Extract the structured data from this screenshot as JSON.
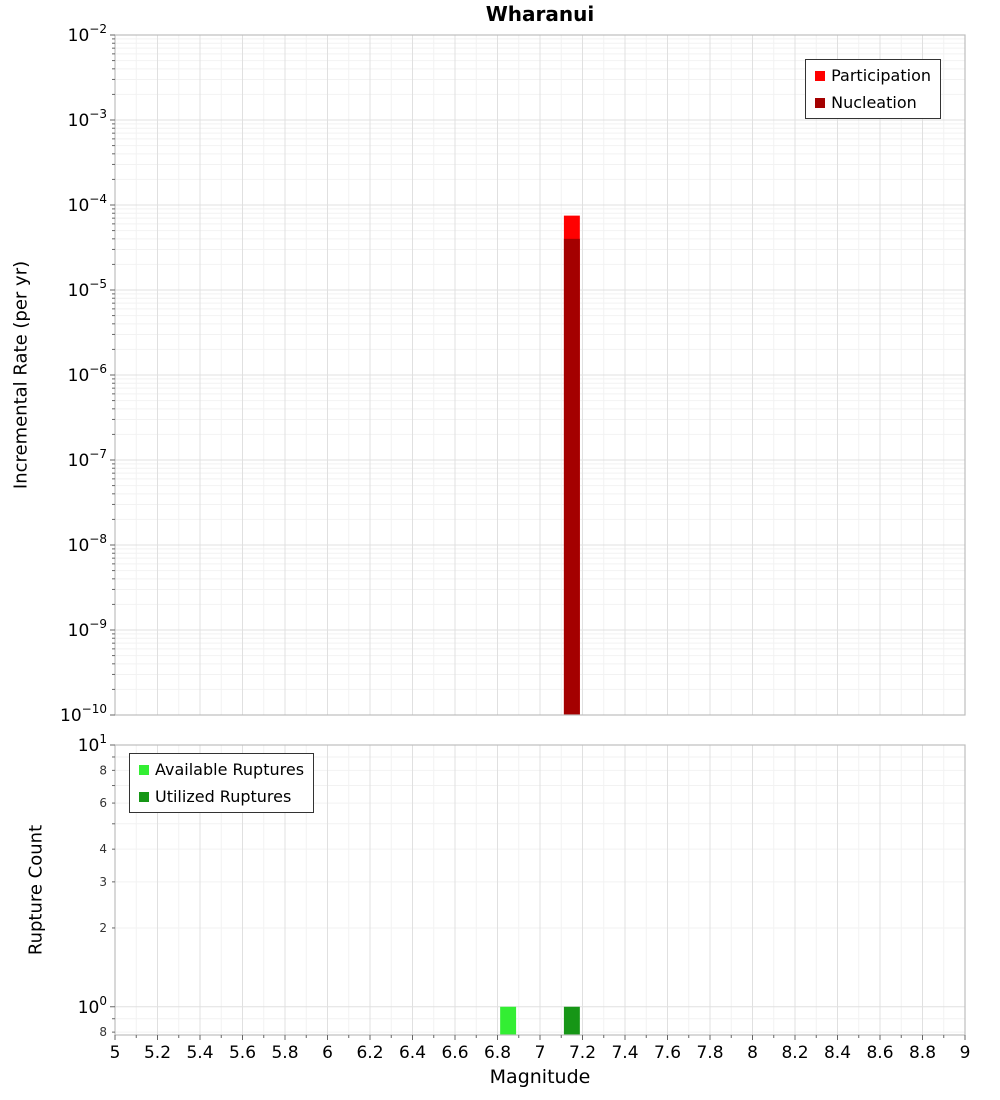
{
  "title": "Wharanui",
  "colors": {
    "grid_major": "#e0e0e0",
    "grid_minor": "#f2f2f2",
    "spine": "#bdbdbd",
    "tick": "#666666",
    "text": "#000000"
  },
  "chart_data": [
    {
      "type": "bar",
      "title": "Wharanui",
      "ylabel": "Incremental Rate (per yr)",
      "yscale": "log",
      "ylim": [
        1e-10,
        0.01
      ],
      "xlim": [
        5,
        9
      ],
      "bar_width": 0.075,
      "grid": true,
      "legend": {
        "position": "top-right"
      },
      "series": [
        {
          "name": "Participation",
          "color": "#ff0000",
          "x": [
            7.15
          ],
          "values": [
            7.5e-05
          ]
        },
        {
          "name": "Nucleation",
          "color": "#a40000",
          "x": [
            7.15
          ],
          "values": [
            4e-05
          ]
        }
      ]
    },
    {
      "type": "bar",
      "ylabel": "Rupture Count",
      "xlabel": "Magnitude",
      "yscale": "log",
      "ylim": [
        0.78,
        10
      ],
      "xlim": [
        5,
        9
      ],
      "bar_width": 0.075,
      "grid": true,
      "legend": {
        "position": "top-left"
      },
      "x_ticks": [
        {
          "value": 5,
          "label": "5"
        },
        {
          "value": 5.2,
          "label": "5.2"
        },
        {
          "value": 5.4,
          "label": "5.4"
        },
        {
          "value": 5.6,
          "label": "5.6"
        },
        {
          "value": 5.8,
          "label": "5.8"
        },
        {
          "value": 6,
          "label": "6"
        },
        {
          "value": 6.2,
          "label": "6.2"
        },
        {
          "value": 6.4,
          "label": "6.4"
        },
        {
          "value": 6.6,
          "label": "6.6"
        },
        {
          "value": 6.8,
          "label": "6.8"
        },
        {
          "value": 7,
          "label": "7"
        },
        {
          "value": 7.2,
          "label": "7.2"
        },
        {
          "value": 7.4,
          "label": "7.4"
        },
        {
          "value": 7.6,
          "label": "7.6"
        },
        {
          "value": 7.8,
          "label": "7.8"
        },
        {
          "value": 8,
          "label": "8"
        },
        {
          "value": 8.2,
          "label": "8.2"
        },
        {
          "value": 8.4,
          "label": "8.4"
        },
        {
          "value": 8.6,
          "label": "8.6"
        },
        {
          "value": 8.8,
          "label": "8.8"
        },
        {
          "value": 9,
          "label": "9"
        }
      ],
      "y_minor_labels": [
        {
          "value": 8,
          "label": "8"
        },
        {
          "value": 6,
          "label": "6"
        },
        {
          "value": 4,
          "label": "4"
        },
        {
          "value": 3,
          "label": "3"
        },
        {
          "value": 2,
          "label": "2"
        },
        {
          "value": 0.8,
          "label": "8"
        }
      ],
      "series": [
        {
          "name": "Available Ruptures",
          "color": "#33ee33",
          "x": [
            6.85
          ],
          "values": [
            1
          ]
        },
        {
          "name": "Utilized Ruptures",
          "color": "#169616",
          "x": [
            7.15
          ],
          "values": [
            1
          ]
        }
      ]
    }
  ]
}
